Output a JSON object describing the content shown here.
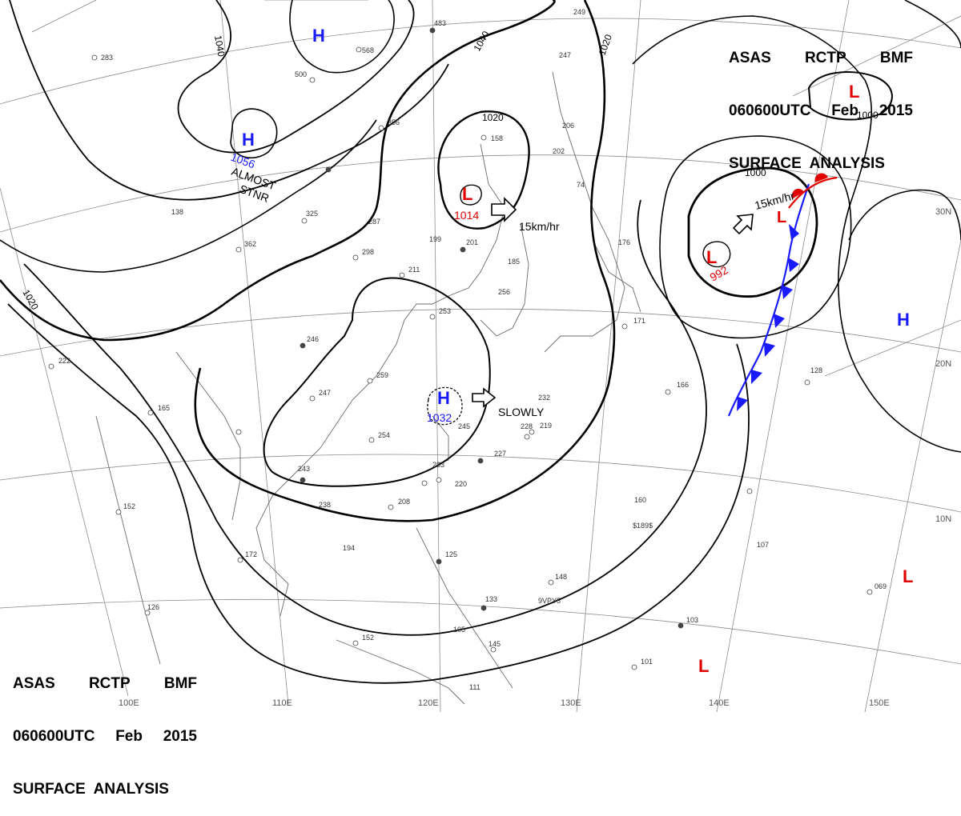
{
  "header_top_right": {
    "line1": [
      "ASAS",
      "RCTP",
      "BMF"
    ],
    "line2": [
      "060600UTC",
      "Feb",
      "2015"
    ],
    "line3": "SURFACE  ANALYSIS"
  },
  "header_bottom_left": {
    "line1": [
      "ASAS",
      "RCTP",
      "BMF"
    ],
    "line2": [
      "060600UTC",
      "Feb",
      "2015"
    ],
    "line3": "SURFACE  ANALYSIS"
  },
  "colors": {
    "high": "#1a1aff",
    "low": "#e00000",
    "front": "#1a1aff",
    "warm_front": "#e00000",
    "grid": "#8c8c8c",
    "coast": "#666666"
  },
  "isobar_labels": {
    "i1040a": "1040",
    "i1040b": "1040",
    "i1020a": "1020",
    "i1020b": "1020",
    "i1020c": "1020",
    "i1000a": "1000",
    "i1000b": "1000"
  },
  "pressure_systems": {
    "h1": {
      "type": "H",
      "value": ""
    },
    "h2": {
      "type": "H",
      "value": "1056"
    },
    "h3": {
      "type": "H",
      "value": "1032"
    },
    "h4": {
      "type": "H",
      "value": ""
    },
    "l1": {
      "type": "L",
      "value": "1014"
    },
    "l2": {
      "type": "L",
      "value": "992"
    },
    "l3": {
      "type": "L",
      "value": ""
    },
    "l4": {
      "type": "L",
      "value": ""
    },
    "l5": {
      "type": "L",
      "value": ""
    },
    "l6": {
      "type": "L",
      "value": ""
    }
  },
  "annotations": {
    "almost": "ALMOST",
    "stnr": "STNR",
    "speed1": "15km/hr",
    "speed2": "15km/hr",
    "slowly": "SLOWLY"
  },
  "longitude_labels": [
    "100E",
    "110E",
    "120E",
    "130E",
    "140E",
    "150E"
  ],
  "latitude_labels": [
    "30N",
    "20N",
    "10N"
  ],
  "station_numbers": {
    "s1": "283",
    "s2": "568",
    "s3": "500",
    "s4": "356",
    "s5": "483",
    "s6": "158",
    "s7": "206",
    "s8": "202",
    "s9": "74",
    "s10": "287",
    "s11": "325",
    "s12": "362",
    "s13": "298",
    "s14": "211",
    "s15": "199",
    "s16": "201",
    "s17": "256",
    "s18": "253",
    "s19": "246",
    "s20": "259",
    "s21": "247",
    "s22": "254",
    "s23": "243",
    "s24": "238",
    "s25": "220",
    "s26": "208",
    "s27": "227",
    "s28": "219",
    "s29": "233",
    "s30": "166",
    "s31": "171",
    "s32": "176",
    "s33": "128",
    "s34": "160",
    "s35": "107",
    "s36": "069",
    "s37": "103",
    "s38": "101",
    "s39": "145",
    "s40": "133",
    "s41": "148",
    "s42": "172",
    "s43": "194",
    "s44": "152",
    "s45": "152",
    "s46": "165",
    "s47": "222",
    "s48": "138",
    "s49": "111",
    "s50": "126",
    "s51": "125",
    "s52": "105",
    "s53": "9VPY5",
    "s54": "$189$",
    "s55": "232",
    "s56": "245",
    "s57": "185",
    "s58": "247",
    "s59": "249",
    "s60": "228"
  }
}
